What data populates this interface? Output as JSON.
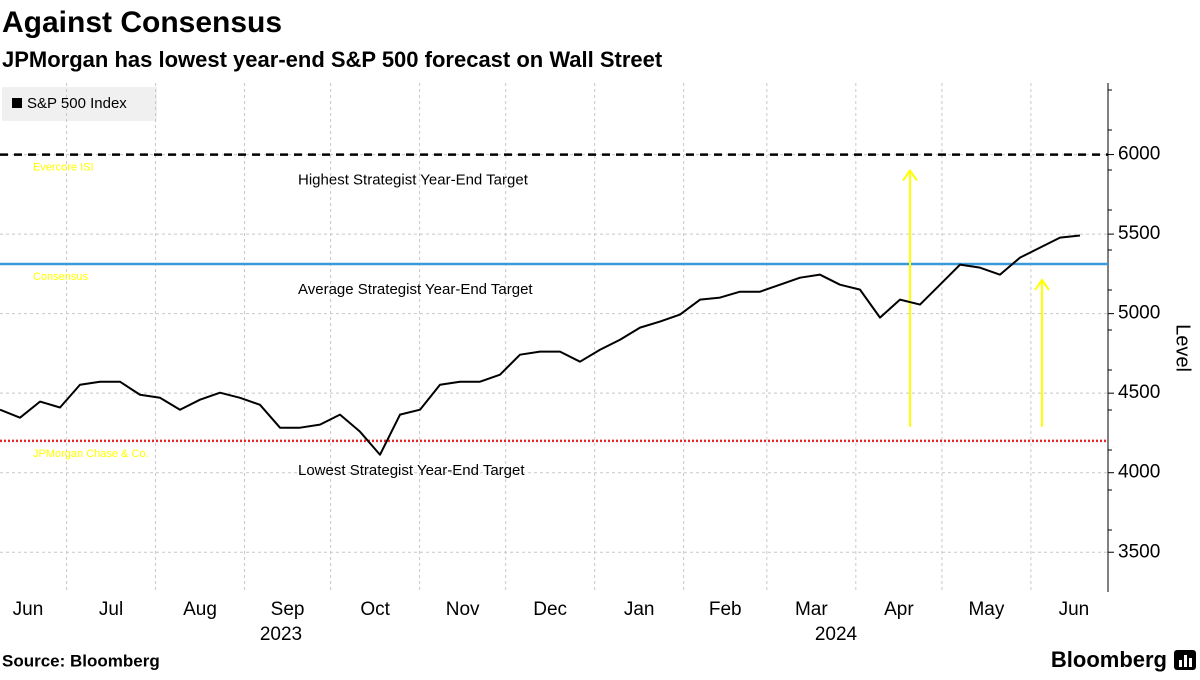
{
  "chart_data": {
    "type": "line",
    "title": "Against Consensus",
    "subtitle": "JPMorgan has lowest year-end S&P 500 forecast on Wall Street",
    "source": "Source: Bloomberg",
    "brand": "Bloomberg",
    "y_axis_label": "Level",
    "months": [
      "Jun",
      "Jul",
      "Aug",
      "Sep",
      "Oct",
      "Nov",
      "Dec",
      "Jan",
      "Feb",
      "Mar",
      "Apr",
      "May",
      "Jun"
    ],
    "years": [
      "2023",
      "2024"
    ],
    "ylim": [
      3250,
      6450
    ],
    "yticks": [
      3500,
      4000,
      4500,
      5000,
      5500,
      6000
    ],
    "grid": true,
    "legend": "top-left",
    "series": [
      {
        "name": "S&P 500 Index",
        "color": "#000000",
        "values": [
          4396,
          4346,
          4447,
          4410,
          4553,
          4572,
          4572,
          4490,
          4471,
          4396,
          4459,
          4503,
          4471,
          4427,
          4283,
          4283,
          4302,
          4365,
          4258,
          4113,
          4365,
          4396,
          4553,
          4572,
          4572,
          4616,
          4742,
          4761,
          4761,
          4698,
          4773,
          4836,
          4912,
          4950,
          4994,
          5088,
          5101,
          5138,
          5138,
          5182,
          5226,
          5245,
          5182,
          5151,
          4975,
          5088,
          5057,
          5182,
          5308,
          5289,
          5245,
          5352,
          5415,
          5478,
          5491
        ]
      }
    ],
    "reference_lines": [
      {
        "name": "Evercore ISI",
        "label": "Highest Strategist Year-End Target",
        "value": 6000,
        "color": "#000000",
        "style": "dashed"
      },
      {
        "name": "Consensus",
        "label": "Average Strategist Year-End Target",
        "value": 5312,
        "color": "#3a9ad9",
        "style": "solid"
      },
      {
        "name": "JPMorgan Chase & Co.",
        "label": "Lowest Strategist Year-End Target",
        "value": 4200,
        "color": "#e8272a",
        "style": "dotted"
      }
    ],
    "annotation_color": "#ffff00"
  }
}
